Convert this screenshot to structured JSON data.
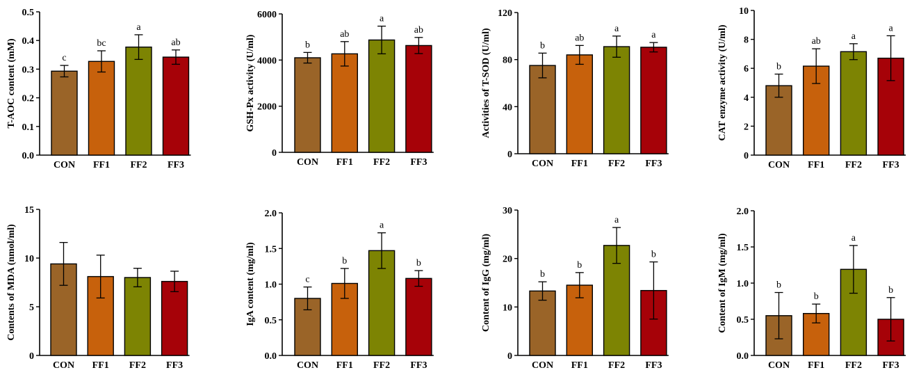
{
  "colors": {
    "CON": "#9a6428",
    "FF1": "#c7610c",
    "FF2": "#7d8403",
    "FF3": "#a60208"
  },
  "chart_data": [
    {
      "type": "bar",
      "ylabel": "T-AOC content  (mM)",
      "categories": [
        "CON",
        "FF1",
        "FF2",
        "FF3"
      ],
      "values": [
        0.293,
        0.327,
        0.377,
        0.342
      ],
      "errors": [
        0.02,
        0.037,
        0.043,
        0.025
      ],
      "sig": [
        "c",
        "bc",
        "a",
        "ab"
      ],
      "ylim": [
        0,
        0.5
      ],
      "yticks": [
        0,
        0.1,
        0.2,
        0.3,
        0.4,
        0.5
      ],
      "ytick_labels": [
        "0.0",
        "0.1",
        "0.2",
        "0.3",
        "0.4",
        "0.5"
      ]
    },
    {
      "type": "bar",
      "ylabel": "GSH-Px  activity (U/ml)",
      "categories": [
        "CON",
        "FF1",
        "FF2",
        "FF3"
      ],
      "values": [
        4100,
        4270,
        4870,
        4630
      ],
      "errors": [
        230,
        530,
        600,
        350
      ],
      "sig": [
        "b",
        "ab",
        "a",
        "ab"
      ],
      "ylim": [
        0,
        6000
      ],
      "yticks": [
        0,
        2000,
        4000,
        6000
      ],
      "ytick_labels": [
        "0",
        "2000",
        "4000",
        "6000"
      ]
    },
    {
      "type": "bar",
      "ylabel": "Activities of T-SOD  (U/ml)",
      "categories": [
        "CON",
        "FF1",
        "FF2",
        "FF3"
      ],
      "values": [
        75,
        84,
        91,
        90.5
      ],
      "errors": [
        10.5,
        8,
        9,
        4
      ],
      "sig": [
        "b",
        "ab",
        "a",
        "a"
      ],
      "ylim": [
        0,
        120
      ],
      "yticks": [
        0,
        40,
        80,
        120
      ],
      "ytick_labels": [
        "0",
        "40",
        "80",
        "120"
      ]
    },
    {
      "type": "bar",
      "ylabel": "CAT enzyme activity   (U/ml)",
      "categories": [
        "CON",
        "FF1",
        "FF2",
        "FF3"
      ],
      "values": [
        4.8,
        6.15,
        7.15,
        6.7
      ],
      "errors": [
        0.8,
        1.2,
        0.55,
        1.55
      ],
      "sig": [
        "b",
        "ab",
        "a",
        "a"
      ],
      "ylim": [
        0,
        10
      ],
      "yticks": [
        0,
        2,
        4,
        6,
        8,
        10
      ],
      "ytick_labels": [
        "0",
        "2",
        "4",
        "6",
        "8",
        "10"
      ]
    },
    {
      "type": "bar",
      "ylabel": "Contents of MDA  (nmol/ml)",
      "categories": [
        "CON",
        "FF1",
        "FF2",
        "FF3"
      ],
      "values": [
        9.4,
        8.1,
        8.0,
        7.6
      ],
      "errors": [
        2.2,
        2.2,
        0.95,
        1.05
      ],
      "sig": [
        "",
        "",
        "",
        ""
      ],
      "ylim": [
        0,
        15
      ],
      "yticks": [
        0,
        5,
        10,
        15
      ],
      "ytick_labels": [
        "0",
        "5",
        "10",
        "15"
      ]
    },
    {
      "type": "bar",
      "ylabel": "IgA content (mg/ml)",
      "categories": [
        "CON",
        "FF1",
        "FF2",
        "FF3"
      ],
      "values": [
        0.8,
        1.01,
        1.47,
        1.08
      ],
      "errors": [
        0.16,
        0.21,
        0.25,
        0.11
      ],
      "sig": [
        "c",
        "b",
        "a",
        "b"
      ],
      "ylim": [
        0,
        2.0
      ],
      "yticks": [
        0,
        0.5,
        1.0,
        1.5,
        2.0
      ],
      "ytick_labels": [
        "0.0",
        "0.5",
        "1.0",
        "1.5",
        "2.0"
      ]
    },
    {
      "type": "bar",
      "ylabel": "Content of IgG   (mg/ml)",
      "categories": [
        "CON",
        "FF1",
        "FF2",
        "FF3"
      ],
      "values": [
        13.3,
        14.5,
        22.7,
        13.4
      ],
      "errors": [
        1.9,
        2.6,
        3.7,
        5.9
      ],
      "sig": [
        "b",
        "b",
        "a",
        "b"
      ],
      "ylim": [
        0,
        30
      ],
      "yticks": [
        0,
        10,
        20,
        30
      ],
      "ytick_labels": [
        "0",
        "10",
        "20",
        "30"
      ]
    },
    {
      "type": "bar",
      "ylabel": "Content of IgM   (mg/ml)",
      "categories": [
        "CON",
        "FF1",
        "FF2",
        "FF3"
      ],
      "values": [
        0.55,
        0.58,
        1.19,
        0.5
      ],
      "errors": [
        0.32,
        0.13,
        0.33,
        0.3
      ],
      "sig": [
        "b",
        "b",
        "a",
        "b"
      ],
      "ylim": [
        0,
        2.0
      ],
      "yticks": [
        0,
        0.5,
        1.0,
        1.5,
        2.0
      ],
      "ytick_labels": [
        "0.0",
        "0.5",
        "1.0",
        "1.5",
        "2.0"
      ]
    }
  ]
}
